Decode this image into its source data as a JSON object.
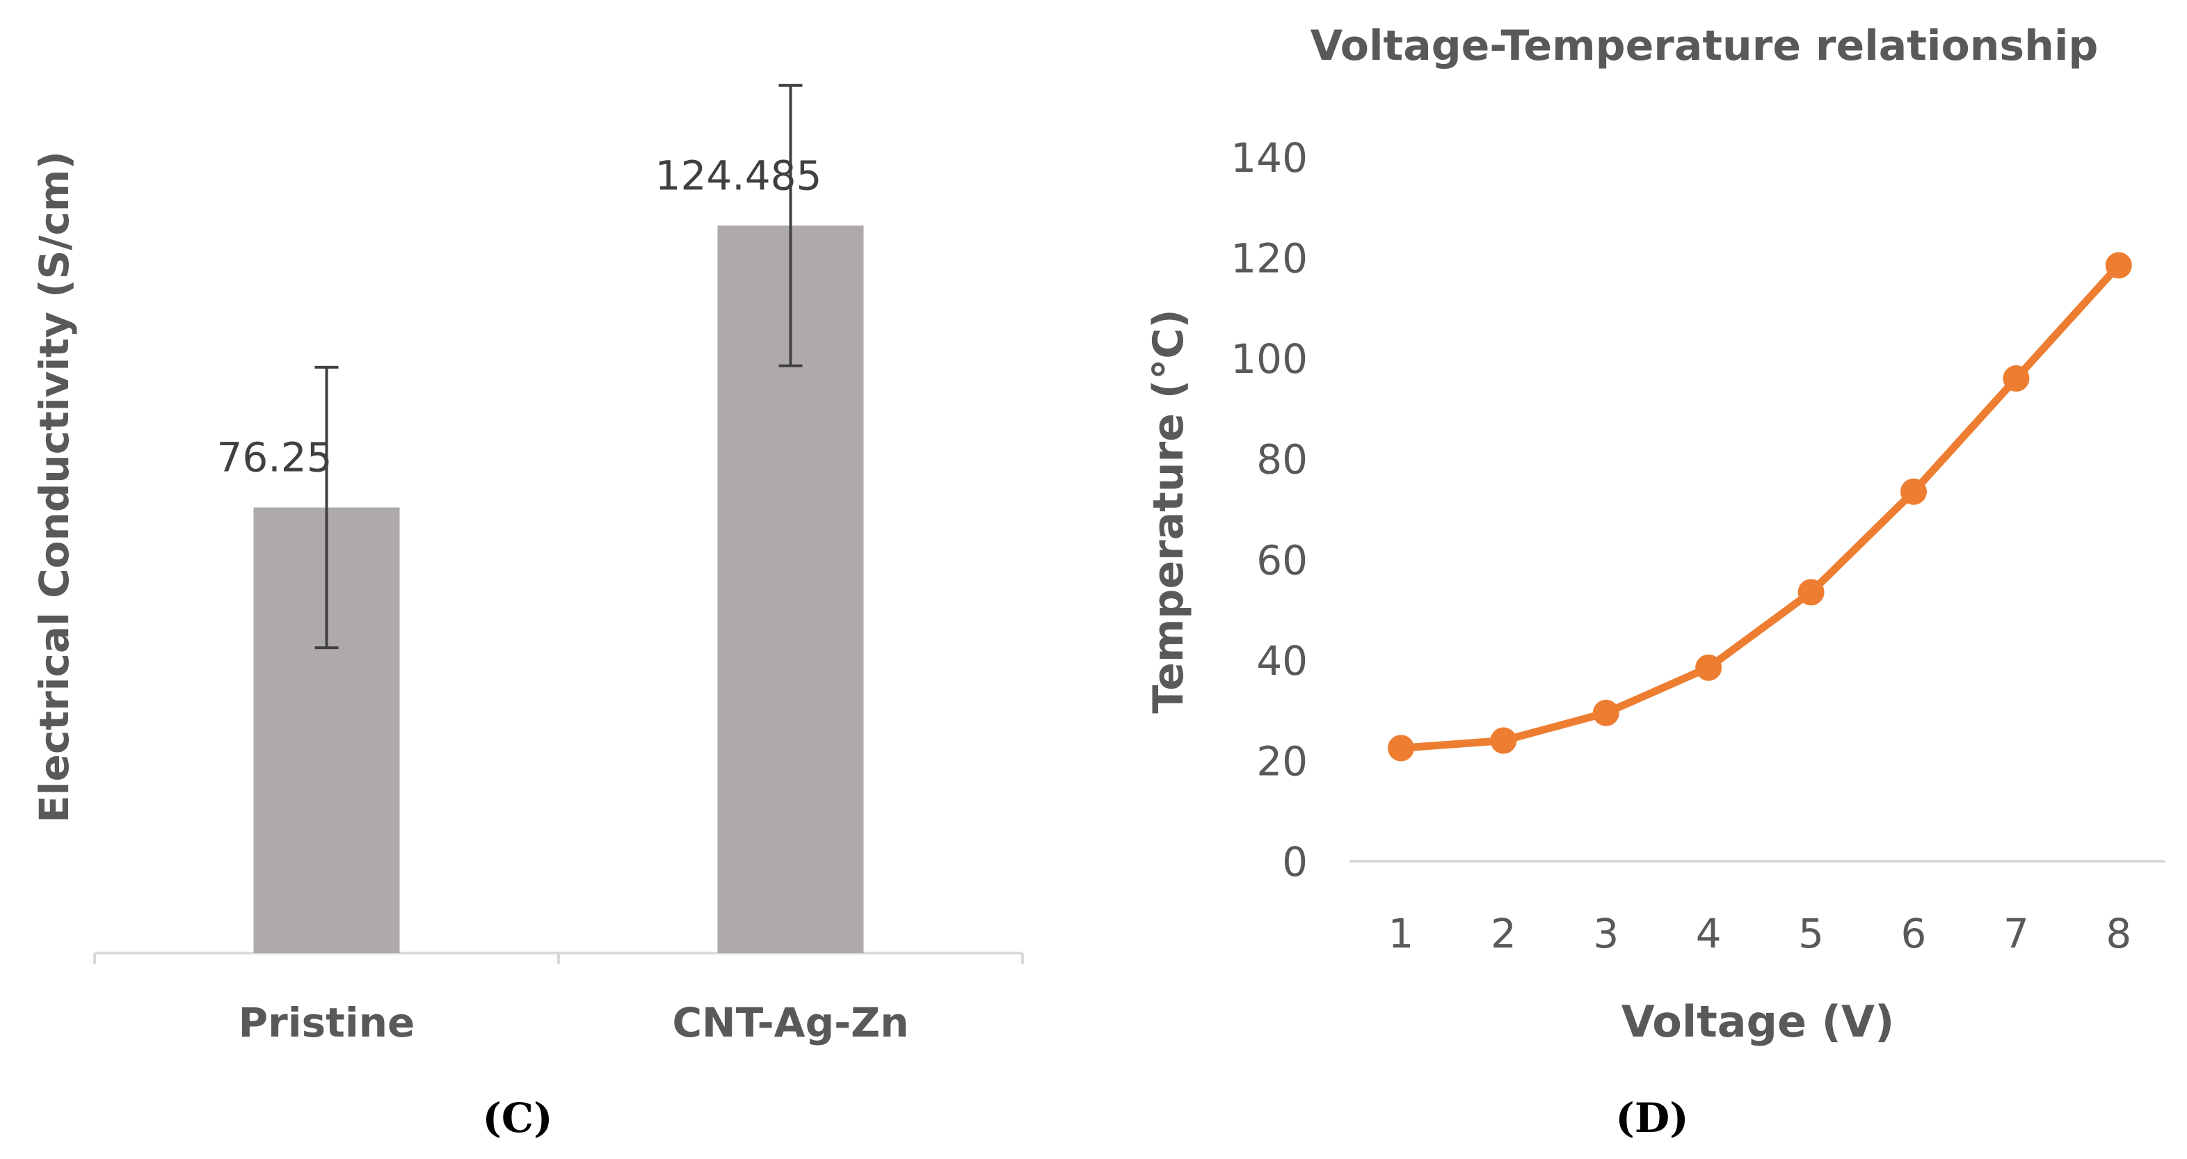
{
  "chart_data": [
    {
      "type": "bar",
      "panel_label": "(C)",
      "title": "",
      "ylabel": "Electrical Conductivity (S/cm)",
      "xlabel": "",
      "categories": [
        "Pristine",
        "CNT-Ag-Zn"
      ],
      "values": [
        76.25,
        124.485
      ],
      "data_labels": [
        "76.25",
        "124.485"
      ],
      "error": [
        24,
        24
      ],
      "ylim": [
        0,
        150
      ],
      "grid": false,
      "colors": {
        "bar": "#aeaaaa",
        "error": "#404040",
        "axis": "#d9d9d9"
      }
    },
    {
      "type": "line",
      "panel_label": "(D)",
      "title": "Voltage-Temperature relationship",
      "xlabel": "Voltage (V)",
      "ylabel": "Temperature (°C)",
      "x": [
        1,
        2,
        3,
        4,
        5,
        6,
        7,
        8
      ],
      "x_tick_labels": [
        "1",
        "2",
        "3",
        "4",
        "5",
        "6",
        "7",
        "8"
      ],
      "y": [
        22.5,
        24,
        29.5,
        38.5,
        53.5,
        73.5,
        96,
        118.5
      ],
      "ylim": [
        0,
        140
      ],
      "y_ticks": [
        0,
        20,
        40,
        60,
        80,
        100,
        120,
        140
      ],
      "y_tick_labels": [
        "0",
        "20",
        "40",
        "60",
        "80",
        "100",
        "120",
        "140"
      ],
      "grid": false,
      "colors": {
        "line": "#ed7d31",
        "axis": "#d9d9d9"
      }
    }
  ]
}
